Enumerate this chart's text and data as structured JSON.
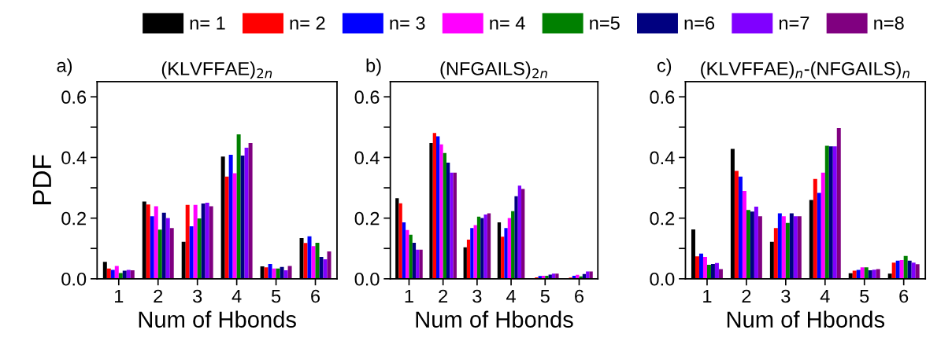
{
  "chart_data": [
    {
      "type": "bar",
      "title": "(KLVFFAE)$_{2n}$",
      "annotations": [
        "a)"
      ],
      "xlabel": "Num of Hbonds",
      "ylabel": "PDF",
      "categories": [
        "1",
        "2",
        "3",
        "4",
        "5",
        "6"
      ],
      "ylim": [
        0,
        0.65
      ],
      "yticks": [
        {
          "value": 0,
          "label": "0.0"
        },
        {
          "value": 0.1,
          "label": null
        },
        0.2,
        {
          "value": 0.3,
          "label": null
        },
        0.4,
        {
          "value": 0.5,
          "label": null
        },
        0.6
      ],
      "legend": "top",
      "grid": false,
      "series": [
        {
          "name": "n= 1",
          "color": "#000000",
          "values": [
            0.056,
            0.255,
            0.122,
            0.403,
            0.041,
            0.134
          ]
        },
        {
          "name": "n= 2",
          "color": "#ff0000",
          "values": [
            0.034,
            0.245,
            0.244,
            0.337,
            0.038,
            0.118
          ]
        },
        {
          "name": "n= 3",
          "color": "#0000ff",
          "values": [
            0.029,
            0.206,
            0.173,
            0.409,
            0.049,
            0.14
          ]
        },
        {
          "name": "n= 4",
          "color": "#ff00ff",
          "values": [
            0.042,
            0.239,
            0.244,
            0.348,
            0.034,
            0.108
          ]
        },
        {
          "name": "n=5",
          "color": "#008000",
          "values": [
            0.019,
            0.162,
            0.199,
            0.476,
            0.034,
            0.119
          ]
        },
        {
          "name": "n=6",
          "color": "#000080",
          "values": [
            0.027,
            0.218,
            0.248,
            0.406,
            0.039,
            0.072
          ]
        },
        {
          "name": "n=7",
          "color": "#8000ff",
          "values": [
            0.029,
            0.2,
            0.251,
            0.432,
            0.028,
            0.064
          ]
        },
        {
          "name": "n=8",
          "color": "#800080",
          "values": [
            0.028,
            0.167,
            0.239,
            0.448,
            0.042,
            0.09
          ]
        }
      ]
    },
    {
      "type": "bar",
      "title": "(NFGAILS)$_{2n}$",
      "annotations": [
        "b)"
      ],
      "xlabel": "Num of Hbonds",
      "categories": [
        "1",
        "2",
        "3",
        "4",
        "5",
        "6"
      ],
      "ylim": [
        0,
        0.65
      ],
      "yticks": [
        {
          "value": 0,
          "label": "0.0"
        },
        {
          "value": 0.1,
          "label": null
        },
        0.2,
        {
          "value": 0.3,
          "label": null
        },
        0.4,
        {
          "value": 0.5,
          "label": null
        },
        0.6
      ],
      "grid": false,
      "series": [
        {
          "color": "#000000",
          "values": [
            0.266,
            0.448,
            0.104,
            0.186,
            0.002,
            0.001
          ]
        },
        {
          "color": "#ff0000",
          "values": [
            0.249,
            0.481,
            0.129,
            0.139,
            0.005,
            0.004
          ]
        },
        {
          "color": "#0000ff",
          "values": [
            0.186,
            0.47,
            0.167,
            0.167,
            0.009,
            0.01
          ]
        },
        {
          "color": "#ff00ff",
          "values": [
            0.161,
            0.443,
            0.177,
            0.2,
            0.01,
            0.013
          ]
        },
        {
          "color": "#008000",
          "values": [
            0.145,
            0.415,
            0.205,
            0.223,
            0.01,
            0.008
          ]
        },
        {
          "color": "#000080",
          "values": [
            0.119,
            0.383,
            0.2,
            0.272,
            0.014,
            0.016
          ]
        },
        {
          "color": "#8000ff",
          "values": [
            0.096,
            0.35,
            0.212,
            0.307,
            0.017,
            0.024
          ]
        },
        {
          "color": "#800080",
          "values": [
            0.096,
            0.35,
            0.216,
            0.296,
            0.017,
            0.024
          ]
        }
      ]
    },
    {
      "type": "bar",
      "title": "(KLVFFAE)$_{n}$-(NFGAILS)$_{n}$",
      "annotations": [
        "c)"
      ],
      "xlabel": "Num of Hbonds",
      "categories": [
        "1",
        "2",
        "3",
        "4",
        "5",
        "6"
      ],
      "ylim": [
        0,
        0.65
      ],
      "yticks": [
        {
          "value": 0,
          "label": "0.0"
        },
        {
          "value": 0.1,
          "label": null
        },
        0.2,
        {
          "value": 0.3,
          "label": null
        },
        0.4,
        {
          "value": 0.5,
          "label": null
        },
        0.6
      ],
      "grid": false,
      "series": [
        {
          "color": "#000000",
          "values": [
            0.163,
            0.428,
            0.122,
            0.26,
            0.018,
            0.017
          ]
        },
        {
          "color": "#ff0000",
          "values": [
            0.074,
            0.356,
            0.167,
            0.329,
            0.027,
            0.053
          ]
        },
        {
          "color": "#0000ff",
          "values": [
            0.083,
            0.337,
            0.216,
            0.283,
            0.029,
            0.06
          ]
        },
        {
          "color": "#ff00ff",
          "values": [
            0.072,
            0.29,
            0.206,
            0.35,
            0.038,
            0.062
          ]
        },
        {
          "color": "#008000",
          "values": [
            0.046,
            0.227,
            0.184,
            0.439,
            0.038,
            0.075
          ]
        },
        {
          "color": "#000080",
          "values": [
            0.049,
            0.222,
            0.216,
            0.437,
            0.028,
            0.06
          ]
        },
        {
          "color": "#8000ff",
          "values": [
            0.052,
            0.238,
            0.206,
            0.437,
            0.03,
            0.053
          ]
        },
        {
          "color": "#800080",
          "values": [
            0.032,
            0.206,
            0.206,
            0.497,
            0.032,
            0.048
          ]
        }
      ]
    }
  ]
}
